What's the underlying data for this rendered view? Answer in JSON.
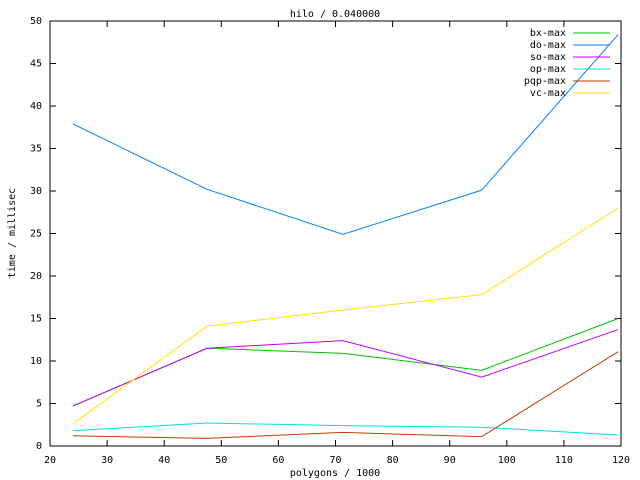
{
  "chart_data": {
    "type": "line",
    "title": "hilo / 0.040000",
    "x_label": "polygons / 1000",
    "y_label": "time / millisec",
    "x": [
      24,
      47.5,
      71.3,
      95.6,
      119.5
    ],
    "series": [
      {
        "name": "bx-max",
        "color": "#00c000",
        "values": [
          4.7,
          11.5,
          10.9,
          8.9,
          15.0
        ]
      },
      {
        "name": "do-max",
        "color": "#0080ff",
        "values": [
          37.9,
          30.2,
          24.9,
          30.1,
          48.4
        ]
      },
      {
        "name": "so-max",
        "color": "#c000ff",
        "values": [
          4.7,
          11.5,
          12.4,
          8.1,
          13.7
        ]
      },
      {
        "name": "op-max",
        "color": "#00e0e0",
        "values": [
          1.8,
          2.7,
          2.4,
          2.2,
          1.3
        ]
      },
      {
        "name": "pqp-max",
        "color": "#c04000",
        "values": [
          1.2,
          0.9,
          1.6,
          1.1,
          11.1
        ]
      },
      {
        "name": "vc-max",
        "color": "#ffe000",
        "values": [
          2.6,
          14.1,
          16.0,
          17.8,
          28.0
        ]
      }
    ],
    "xlim": [
      20,
      120
    ],
    "xticks": [
      20,
      30,
      40,
      50,
      60,
      70,
      80,
      90,
      100,
      110,
      120
    ],
    "ylim": [
      0,
      50
    ],
    "yticks": [
      0,
      5,
      10,
      15,
      20,
      25,
      30,
      35,
      40,
      45,
      50
    ],
    "grid": false,
    "legend": "top-right"
  }
}
